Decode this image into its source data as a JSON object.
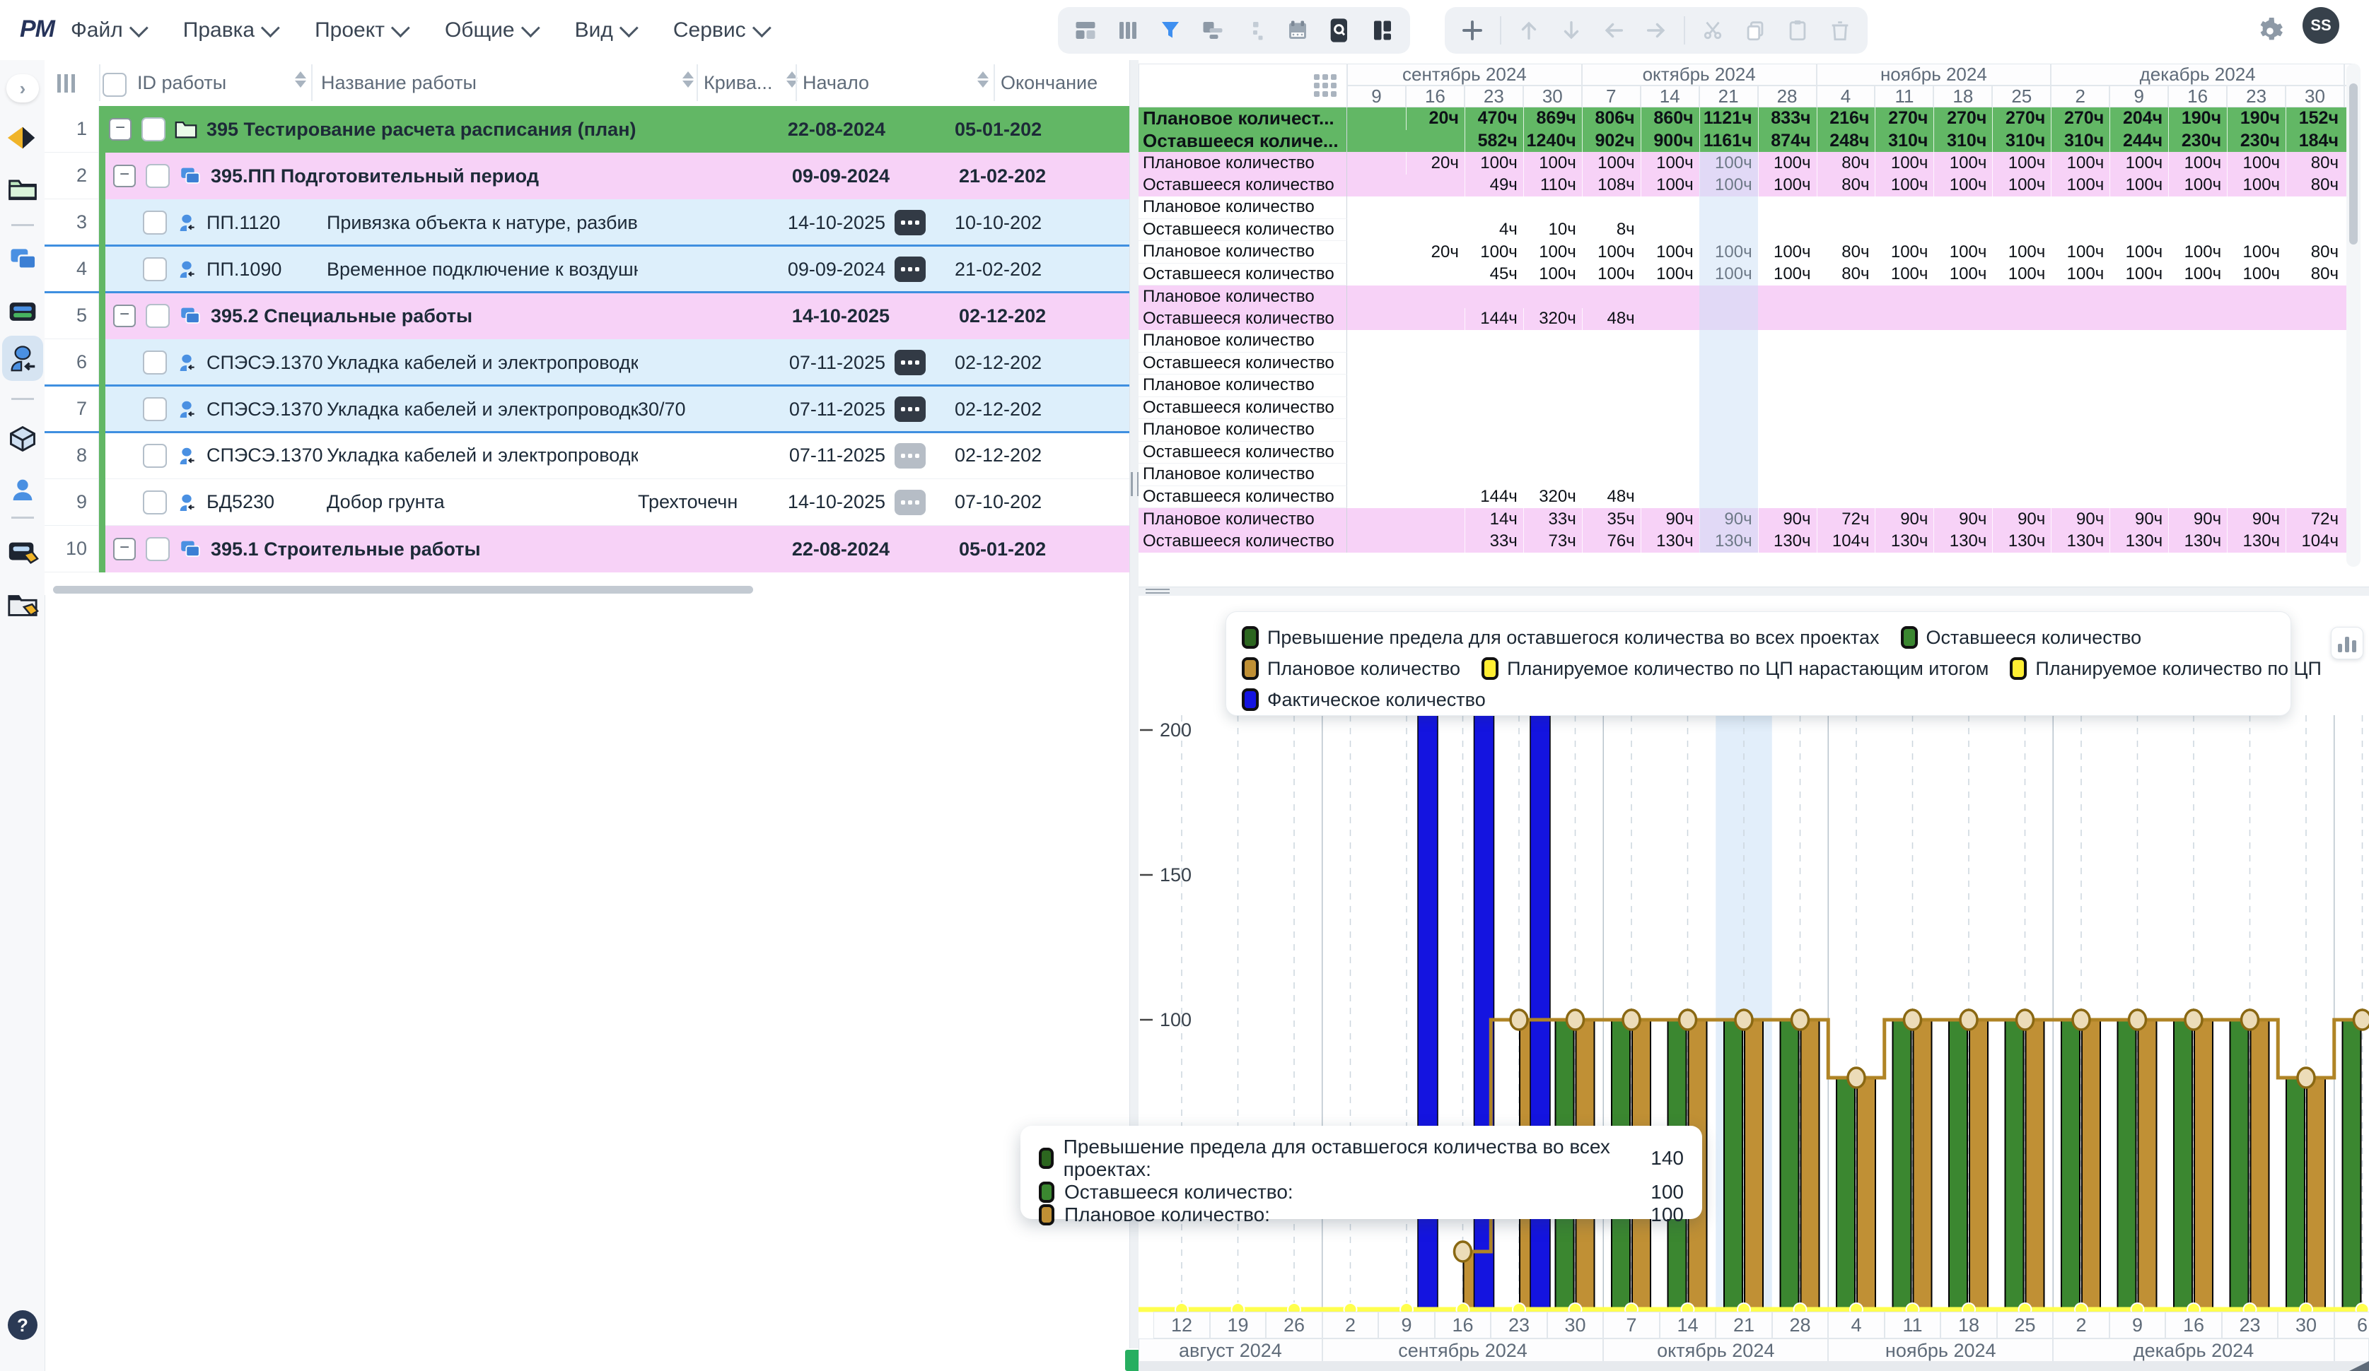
{
  "topbar": {
    "logo": "PM",
    "menus": [
      "Файл",
      "Правка",
      "Проект",
      "Общие",
      "Вид",
      "Сервис"
    ],
    "view_tools": [
      "table-layout",
      "columns",
      "filter",
      "panel-layout",
      "hierarchy",
      "calendar",
      "search",
      "split-view"
    ],
    "edit_tools": [
      "add",
      "move-up",
      "move-down",
      "left",
      "right",
      "cut",
      "copy",
      "paste",
      "delete"
    ],
    "avatar": "SS"
  },
  "sidebar": {
    "items": [
      "expand",
      "diamond",
      "folder",
      "copy",
      "list",
      "person-assign",
      "cube",
      "person",
      "tag-board",
      "tag-folder"
    ],
    "selected": "person-assign",
    "help": "?"
  },
  "work_table": {
    "columns": {
      "id": "ID работы",
      "name": "Название работы",
      "curve": "Крива...",
      "start": "Начало",
      "end": "Окончание"
    },
    "rows": [
      {
        "num": "1",
        "kind": "project",
        "id": "",
        "name": "395 Тестирование расчета расписания (план)",
        "curve": "",
        "start": "22-08-2024",
        "end": "05-01-202",
        "color": "green",
        "collapse": true,
        "icon": "folder",
        "ellipsis": "none",
        "bold": true,
        "divider": false
      },
      {
        "num": "2",
        "kind": "group",
        "id": "",
        "name": "395.ПП Подготовительный период",
        "curve": "",
        "start": "09-09-2024",
        "end": "21-02-202",
        "color": "pink",
        "collapse": true,
        "icon": "copy",
        "ellipsis": "none",
        "bold": true,
        "divider": false
      },
      {
        "num": "3",
        "kind": "task",
        "id": "ПП.1120",
        "name": "Привязка объекта к натуре, разбивка территории",
        "curve": "",
        "start": "14-10-2025",
        "end": "10-10-202",
        "color": "blue",
        "collapse": false,
        "icon": "person",
        "ellipsis": "dark",
        "bold": false,
        "divider": true
      },
      {
        "num": "4",
        "kind": "task",
        "id": "ПП.1090",
        "name": "Временное подключение к воздушной линии эле...",
        "curve": "",
        "start": "09-09-2024",
        "end": "21-02-202",
        "color": "blue",
        "collapse": false,
        "icon": "person",
        "ellipsis": "dark",
        "bold": false,
        "divider": true
      },
      {
        "num": "5",
        "kind": "group",
        "id": "",
        "name": "395.2 Специальные работы",
        "curve": "",
        "start": "14-10-2025",
        "end": "02-12-202",
        "color": "pink",
        "collapse": true,
        "icon": "copy",
        "ellipsis": "none",
        "bold": true,
        "divider": false
      },
      {
        "num": "6",
        "kind": "task",
        "id": "СПЭСЭ.1370",
        "name": "Укладка кабелей и электропроводки",
        "curve": "",
        "start": "07-11-2025",
        "end": "02-12-202",
        "color": "blue",
        "collapse": false,
        "icon": "person",
        "ellipsis": "dark",
        "bold": false,
        "divider": true
      },
      {
        "num": "7",
        "kind": "task",
        "id": "СПЭСЭ.1370",
        "name": "Укладка кабелей и электропроводки",
        "curve": "30/70",
        "start": "07-11-2025",
        "end": "02-12-202",
        "color": "blue",
        "collapse": false,
        "icon": "person",
        "ellipsis": "dark",
        "bold": false,
        "divider": true
      },
      {
        "num": "8",
        "kind": "task",
        "id": "СПЭСЭ.1370",
        "name": "Укладка кабелей и электропроводки",
        "curve": "",
        "start": "07-11-2025",
        "end": "02-12-202",
        "color": "white",
        "collapse": false,
        "icon": "person",
        "ellipsis": "gray",
        "bold": false,
        "divider": false
      },
      {
        "num": "9",
        "kind": "task",
        "id": "БД5230",
        "name": "Добор грунта",
        "curve": "Трехточечная",
        "start": "14-10-2025",
        "end": "07-10-202",
        "color": "white",
        "collapse": false,
        "icon": "person",
        "ellipsis": "gray",
        "bold": false,
        "divider": false
      },
      {
        "num": "10",
        "kind": "group",
        "id": "",
        "name": "395.1 Строительные работы",
        "curve": "",
        "start": "22-08-2024",
        "end": "05-01-202",
        "color": "pink",
        "collapse": true,
        "icon": "copy",
        "ellipsis": "none",
        "bold": true,
        "divider": false
      }
    ]
  },
  "resource_table": {
    "months": [
      {
        "label": "сентябрь 2024",
        "weeks": 4
      },
      {
        "label": "октябрь 2024",
        "weeks": 4
      },
      {
        "label": "ноябрь 2024",
        "weeks": 4
      },
      {
        "label": "декабрь 2024",
        "weeks": 5
      }
    ],
    "weeks": [
      "9",
      "16",
      "23",
      "30",
      "7",
      "14",
      "21",
      "28",
      "4",
      "11",
      "18",
      "25",
      "2",
      "9",
      "16",
      "23",
      "30"
    ],
    "highlight_week_index": 6,
    "rows": [
      {
        "label": "Плановое количест...",
        "color": "green",
        "values": [
          "",
          "20ч",
          "470ч",
          "869ч",
          "806ч",
          "860ч",
          "1121ч",
          "833ч",
          "216ч",
          "270ч",
          "270ч",
          "270ч",
          "270ч",
          "204ч",
          "190ч",
          "190ч",
          "152ч"
        ]
      },
      {
        "label": "Оставшееся količе...",
        "color": "green",
        "values": [
          "",
          "",
          "582ч",
          "1240ч",
          "902ч",
          "900ч",
          "1161ч",
          "874ч",
          "248ч",
          "310ч",
          "310ч",
          "310ч",
          "310ч",
          "244ч",
          "230ч",
          "230ч",
          "184ч"
        ]
      },
      {
        "label": "Плановое количество",
        "color": "pink",
        "values": [
          "",
          "20ч",
          "100ч",
          "100ч",
          "100ч",
          "100ч",
          "100ч",
          "100ч",
          "80ч",
          "100ч",
          "100ч",
          "100ч",
          "100ч",
          "100ч",
          "100ч",
          "100ч",
          "80ч"
        ]
      },
      {
        "label": "Оставшееся количество",
        "color": "pink",
        "values": [
          "",
          "",
          "49ч",
          "110ч",
          "108ч",
          "100ч",
          "100ч",
          "100ч",
          "80ч",
          "100ч",
          "100ч",
          "100ч",
          "100ч",
          "100ч",
          "100ч",
          "100ч",
          "80ч"
        ]
      },
      {
        "label": "Плановое количество",
        "color": "white",
        "values": [
          "",
          "",
          "",
          "",
          "",
          "",
          "",
          "",
          "",
          "",
          "",
          "",
          "",
          "",
          "",
          "",
          ""
        ]
      },
      {
        "label": "Оставшееся количество",
        "color": "white",
        "values": [
          "",
          "",
          "4ч",
          "10ч",
          "8ч",
          "",
          "",
          "",
          "",
          "",
          "",
          "",
          "",
          "",
          "",
          "",
          ""
        ]
      },
      {
        "label": "Плановое количество",
        "color": "white",
        "values": [
          "",
          "20ч",
          "100ч",
          "100ч",
          "100ч",
          "100ч",
          "100ч",
          "100ч",
          "80ч",
          "100ч",
          "100ч",
          "100ч",
          "100ч",
          "100ч",
          "100ч",
          "100ч",
          "80ч"
        ]
      },
      {
        "label": "Оставшееся количество",
        "color": "white",
        "values": [
          "",
          "",
          "45ч",
          "100ч",
          "100ч",
          "100ч",
          "100ч",
          "100ч",
          "80ч",
          "100ч",
          "100ч",
          "100ч",
          "100ч",
          "100ч",
          "100ч",
          "100ч",
          "80ч"
        ]
      },
      {
        "label": "Плановое количество",
        "color": "pink",
        "values": [
          "",
          "",
          "",
          "",
          "",
          "",
          "",
          "",
          "",
          "",
          "",
          "",
          "",
          "",
          "",
          "",
          ""
        ]
      },
      {
        "label": "Оставшееся количество",
        "color": "pink",
        "values": [
          "",
          "",
          "144ч",
          "320ч",
          "48ч",
          "",
          "",
          "",
          "",
          "",
          "",
          "",
          "",
          "",
          "",
          "",
          ""
        ]
      },
      {
        "label": "Плановое количество",
        "color": "white",
        "values": [
          "",
          "",
          "",
          "",
          "",
          "",
          "",
          "",
          "",
          "",
          "",
          "",
          "",
          "",
          "",
          "",
          ""
        ]
      },
      {
        "label": "Оставшееся количество",
        "color": "white",
        "values": [
          "",
          "",
          "",
          "",
          "",
          "",
          "",
          "",
          "",
          "",
          "",
          "",
          "",
          "",
          "",
          "",
          ""
        ]
      },
      {
        "label": "Плановое количество",
        "color": "white",
        "values": [
          "",
          "",
          "",
          "",
          "",
          "",
          "",
          "",
          "",
          "",
          "",
          "",
          "",
          "",
          "",
          "",
          ""
        ]
      },
      {
        "label": "Оставшееся количество",
        "color": "white",
        "values": [
          "",
          "",
          "",
          "",
          "",
          "",
          "",
          "",
          "",
          "",
          "",
          "",
          "",
          "",
          "",
          "",
          ""
        ]
      },
      {
        "label": "Плановое количество",
        "color": "white",
        "values": [
          "",
          "",
          "",
          "",
          "",
          "",
          "",
          "",
          "",
          "",
          "",
          "",
          "",
          "",
          "",
          "",
          ""
        ]
      },
      {
        "label": "Оставшееся количество",
        "color": "white",
        "values": [
          "",
          "",
          "",
          "",
          "",
          "",
          "",
          "",
          "",
          "",
          "",
          "",
          "",
          "",
          "",
          "",
          ""
        ]
      },
      {
        "label": "Плановое количество",
        "color": "white",
        "values": [
          "",
          "",
          "",
          "",
          "",
          "",
          "",
          "",
          "",
          "",
          "",
          "",
          "",
          "",
          "",
          "",
          ""
        ]
      },
      {
        "label": "Оставшееся количество",
        "color": "white",
        "values": [
          "",
          "",
          "144ч",
          "320ч",
          "48ч",
          "",
          "",
          "",
          "",
          "",
          "",
          "",
          "",
          "",
          "",
          "",
          ""
        ]
      },
      {
        "label": "Плановое количество",
        "color": "pink",
        "values": [
          "",
          "",
          "14ч",
          "33ч",
          "35ч",
          "90ч",
          "90ч",
          "90ч",
          "72ч",
          "90ч",
          "90ч",
          "90ч",
          "90ч",
          "90ч",
          "90ч",
          "90ч",
          "72ч"
        ]
      },
      {
        "label": "Оставшееся количество",
        "color": "pink",
        "values": [
          "",
          "",
          "33ч",
          "73ч",
          "76ч",
          "130ч",
          "130ч",
          "130ч",
          "104ч",
          "130ч",
          "130ч",
          "130ч",
          "130ч",
          "130ч",
          "130ч",
          "130ч",
          "104ч"
        ]
      }
    ]
  },
  "chart_data": {
    "type": "bar",
    "x": [
      "12",
      "19",
      "26",
      "2",
      "9",
      "16",
      "23",
      "30",
      "7",
      "14",
      "21",
      "28",
      "4",
      "11",
      "18",
      "25",
      "2",
      "9",
      "16",
      "23",
      "30",
      "6"
    ],
    "months": [
      {
        "label": "август 2024",
        "from": 0,
        "to": 2
      },
      {
        "label": "сентябрь 2024",
        "from": 3,
        "to": 7
      },
      {
        "label": "октябрь 2024",
        "from": 8,
        "to": 11
      },
      {
        "label": "ноябрь 2024",
        "from": 12,
        "to": 15
      },
      {
        "label": "декабрь 2024",
        "from": 16,
        "to": 20
      }
    ],
    "ylim": [
      0,
      205
    ],
    "yticks": [
      100,
      150,
      200
    ],
    "highlight_week_index": 10,
    "series": [
      {
        "name": "Фактическое количество",
        "type": "bar",
        "color": "#1414e0",
        "values": [
          null,
          null,
          null,
          null,
          215,
          215,
          215,
          null,
          null,
          null,
          null,
          null,
          null,
          null,
          null,
          null,
          null,
          null,
          null,
          null,
          null,
          null
        ]
      },
      {
        "name": "Оставшееся количество",
        "type": "bar",
        "color": "#3b8730",
        "values": [
          null,
          null,
          null,
          null,
          null,
          null,
          null,
          100,
          100,
          100,
          100,
          100,
          80,
          100,
          100,
          100,
          100,
          100,
          100,
          100,
          80,
          100
        ]
      },
      {
        "name": "Плановое количество",
        "type": "bar",
        "color": "#c09035",
        "values": [
          null,
          null,
          null,
          null,
          null,
          20,
          100,
          100,
          100,
          100,
          100,
          100,
          80,
          100,
          100,
          100,
          100,
          100,
          100,
          100,
          80,
          null
        ]
      },
      {
        "name": "Плановое количество (линия)",
        "type": "step-line",
        "color": "#b08425",
        "values": [
          null,
          null,
          null,
          null,
          null,
          20,
          100,
          100,
          100,
          100,
          100,
          100,
          80,
          100,
          100,
          100,
          100,
          100,
          100,
          100,
          80,
          100
        ]
      },
      {
        "name": "Планируемое количество по ЦП",
        "type": "line",
        "color": "#ffff4d",
        "values": [
          0,
          0,
          0,
          0,
          0,
          0,
          0,
          0,
          0,
          0,
          0,
          0,
          0,
          0,
          0,
          0,
          0,
          0,
          0,
          0,
          0,
          0
        ]
      }
    ],
    "legend": [
      {
        "label": "Превышение предела для оставшегося количества во всех проектах",
        "color": "#2c661f"
      },
      {
        "label": "Оставшееся количество",
        "color": "#3b8730"
      },
      {
        "label": "Плановое количество",
        "color": "#c09035"
      },
      {
        "label": "Планируемое количество по ЦП нарастающим итогом",
        "color": "#ffee33"
      },
      {
        "label": "Планируемое количество по ЦП",
        "color": "#ffee33"
      },
      {
        "label": "Фактическое количество",
        "color": "#1414e0"
      }
    ],
    "tooltip": {
      "rows": [
        {
          "label": "Превышение предела для оставшегося количества во всех проектах:",
          "value": "140",
          "color": "#2c661f"
        },
        {
          "label": "Оставшееся количество:",
          "value": "100",
          "color": "#3b8730"
        },
        {
          "label": "Плановое количество:",
          "value": "100",
          "color": "#c09035"
        }
      ]
    }
  }
}
